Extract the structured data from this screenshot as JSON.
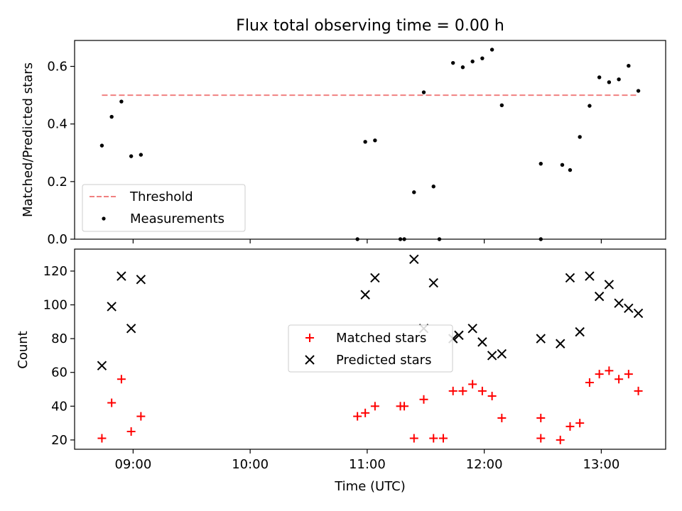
{
  "figure": {
    "title": "Flux total observing time = 0.00 h",
    "xlabel": "Time (UTC)"
  },
  "chart_data": [
    {
      "type": "scatter",
      "ylabel": "Matched/Predicted stars",
      "xlim": [
        "08:30",
        "13:33"
      ],
      "ylim": [
        0,
        0.69
      ],
      "yticks": [
        0.0,
        0.2,
        0.4,
        0.6
      ],
      "ytick_labels": [
        "0.0",
        "0.2",
        "0.4",
        "0.6"
      ],
      "xticks": [
        "09:00",
        "10:00",
        "11:00",
        "12:00",
        "13:00"
      ],
      "xtick_labels_visible": false,
      "grid": false,
      "legend": {
        "location": "lower left"
      },
      "series": [
        {
          "name": "Threshold",
          "kind": "dashed-line",
          "color": "#f08080",
          "x": [
            "08:44",
            "13:19"
          ],
          "y": [
            0.5,
            0.5
          ]
        },
        {
          "name": "Measurements",
          "kind": "dot",
          "color": "#000000",
          "x": [
            "08:44",
            "08:49",
            "08:54",
            "08:59",
            "09:04",
            "10:55",
            "10:59",
            "11:04",
            "11:17",
            "11:19",
            "11:24",
            "11:29",
            "11:34",
            "11:37",
            "11:44",
            "11:49",
            "11:54",
            "11:59",
            "12:04",
            "12:09",
            "12:29",
            "12:29",
            "12:40",
            "12:44",
            "12:49",
            "12:54",
            "12:59",
            "13:04",
            "13:09",
            "13:14",
            "13:19"
          ],
          "y": [
            0.325,
            0.425,
            0.478,
            0.288,
            0.293,
            0.0,
            0.338,
            0.343,
            0.0,
            0.0,
            0.163,
            0.51,
            0.183,
            0.0,
            0.612,
            0.597,
            0.617,
            0.628,
            0.658,
            0.465,
            0.0,
            0.262,
            0.258,
            0.24,
            0.355,
            0.463,
            0.562,
            0.545,
            0.555,
            0.602,
            0.515
          ]
        }
      ]
    },
    {
      "type": "scatter",
      "ylabel": "Count",
      "xlabel": "Time (UTC)",
      "xlim": [
        "08:30",
        "13:33"
      ],
      "ylim": [
        14.5,
        133
      ],
      "yticks": [
        20,
        40,
        60,
        80,
        100,
        120
      ],
      "ytick_labels": [
        "20",
        "40",
        "60",
        "80",
        "100",
        "120"
      ],
      "xticks": [
        "09:00",
        "10:00",
        "11:00",
        "12:00",
        "13:00"
      ],
      "xtick_labels": [
        "09:00",
        "10:00",
        "11:00",
        "12:00",
        "13:00"
      ],
      "grid": false,
      "legend": {
        "location": "center"
      },
      "series": [
        {
          "name": "Matched stars",
          "marker": "plus",
          "color": "#ff0000",
          "x": [
            "08:44",
            "08:49",
            "08:54",
            "08:59",
            "09:04",
            "10:55",
            "10:59",
            "11:04",
            "11:17",
            "11:19",
            "11:24",
            "11:29",
            "11:34",
            "11:39",
            "11:44",
            "11:49",
            "11:54",
            "11:59",
            "12:04",
            "12:09",
            "12:29",
            "12:29",
            "12:39",
            "12:44",
            "12:49",
            "12:54",
            "12:59",
            "13:04",
            "13:09",
            "13:14",
            "13:19"
          ],
          "y": [
            21,
            42,
            56,
            25,
            34,
            34,
            36,
            40,
            40,
            40,
            21,
            44,
            21,
            21,
            49,
            49,
            53,
            49,
            46,
            33,
            33,
            21,
            20,
            28,
            30,
            54,
            59,
            61,
            56,
            59,
            49
          ]
        },
        {
          "name": "Predicted stars",
          "marker": "x",
          "color": "#000000",
          "x": [
            "08:44",
            "08:49",
            "08:54",
            "08:59",
            "09:04",
            "10:59",
            "11:04",
            "11:24",
            "11:29",
            "11:34",
            "11:44",
            "11:47",
            "11:54",
            "11:59",
            "12:04",
            "12:09",
            "12:29",
            "12:39",
            "12:44",
            "12:49",
            "12:54",
            "12:59",
            "13:04",
            "13:09",
            "13:14",
            "13:19"
          ],
          "y": [
            64,
            99,
            117,
            86,
            115,
            106,
            116,
            127,
            86,
            113,
            80,
            82,
            86,
            78,
            70,
            71,
            80,
            77,
            116,
            84,
            117,
            105,
            112,
            101,
            98,
            95
          ]
        }
      ]
    }
  ]
}
